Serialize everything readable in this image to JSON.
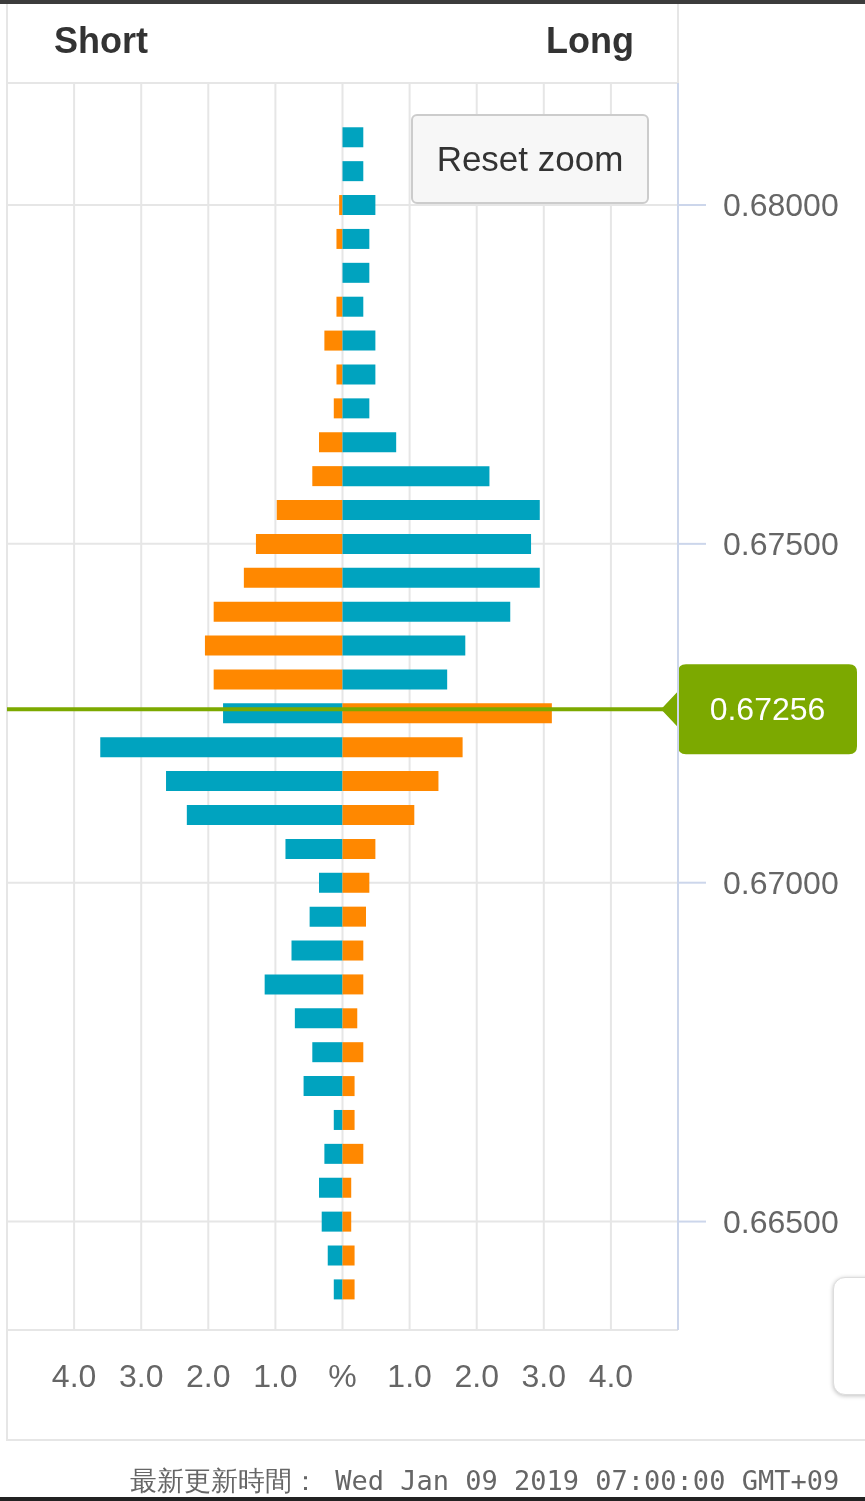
{
  "chart_data": {
    "type": "bar",
    "orientation": "horizontal",
    "stacked": true,
    "x": [
      0.681,
      0.6805,
      0.68,
      0.6795,
      0.679,
      0.6785,
      0.678,
      0.6775,
      0.677,
      0.6765,
      0.676,
      0.6755,
      0.675,
      0.6745,
      0.674,
      0.6735,
      0.673,
      0.6725,
      0.672,
      0.6715,
      0.671,
      0.6705,
      0.67,
      0.6695,
      0.669,
      0.6685,
      0.668,
      0.6675,
      0.667,
      0.6665,
      0.666,
      0.6655,
      0.665,
      0.6645,
      0.664
    ],
    "series": [
      {
        "colors": [
          "#ff8800",
          "#ff8800",
          "#ff8800",
          "#ff8800",
          "#ff8800",
          "#ff8800",
          "#ff8800",
          "#ff8800",
          "#ff8800",
          "#ff8800",
          "#ff8800",
          "#ff8800",
          "#ff8800",
          "#ff8800",
          "#ff8800",
          "#ff8800",
          "#ff8800",
          "#00a3bf",
          "#00a3bf",
          "#00a3bf",
          "#00a3bf",
          "#00a3bf",
          "#00a3bf",
          "#00a3bf",
          "#00a3bf",
          "#00a3bf",
          "#00a3bf",
          "#00a3bf",
          "#00a3bf",
          "#00a3bf",
          "#00a3bf",
          "#00a3bf",
          "#00a3bf",
          "#00a3bf",
          "#00a3bf"
        ],
        "values": [
          null,
          null,
          -0.05,
          -0.09,
          null,
          -0.09,
          -0.27,
          -0.09,
          -0.13,
          -0.35,
          -0.45,
          -0.98,
          -1.29,
          -1.47,
          -1.92,
          -2.05,
          -1.92,
          -1.78,
          -3.61,
          -2.63,
          -2.32,
          -0.85,
          -0.35,
          -0.49,
          -0.76,
          -1.16,
          -0.71,
          -0.45,
          -0.58,
          -0.13,
          -0.27,
          -0.35,
          -0.31,
          -0.22,
          -0.13
        ]
      },
      {
        "colors": [
          "#00a3bf",
          "#00a3bf",
          "#00a3bf",
          "#00a3bf",
          "#00a3bf",
          "#00a3bf",
          "#00a3bf",
          "#00a3bf",
          "#00a3bf",
          "#00a3bf",
          "#00a3bf",
          "#00a3bf",
          "#00a3bf",
          "#00a3bf",
          "#00a3bf",
          "#00a3bf",
          "#00a3bf",
          "#ff8800",
          "#ff8800",
          "#ff8800",
          "#ff8800",
          "#ff8800",
          "#ff8800",
          "#ff8800",
          "#ff8800",
          "#ff8800",
          "#ff8800",
          "#ff8800",
          "#ff8800",
          "#ff8800",
          "#ff8800",
          "#ff8800",
          "#ff8800",
          "#ff8800",
          "#ff8800"
        ],
        "values": [
          0.31,
          0.31,
          0.49,
          0.4,
          0.4,
          0.31,
          0.49,
          0.49,
          0.4,
          0.8,
          2.19,
          2.94,
          2.81,
          2.94,
          2.5,
          1.83,
          1.56,
          3.12,
          1.79,
          1.43,
          1.07,
          0.49,
          0.4,
          0.35,
          0.31,
          0.31,
          0.22,
          0.31,
          0.18,
          0.18,
          0.31,
          0.13,
          0.13,
          0.18,
          0.18
        ]
      }
    ],
    "xlim": [
      -5,
      5
    ],
    "xticks": [
      {
        "value": -5,
        "label": null
      },
      {
        "value": -4,
        "label": "4.0"
      },
      {
        "value": -3,
        "label": "3.0"
      },
      {
        "value": -2,
        "label": "2.0"
      },
      {
        "value": -1,
        "label": "1.0"
      },
      {
        "value": 0,
        "label": "%"
      },
      {
        "value": 1,
        "label": "1.0"
      },
      {
        "value": 2,
        "label": "2.0"
      },
      {
        "value": 3,
        "label": "3.0"
      },
      {
        "value": 4,
        "label": "4.0"
      },
      {
        "value": 5,
        "label": null
      }
    ],
    "ylim": [
      0.6634,
      0.6818
    ],
    "yticks": [
      {
        "value": 0.665,
        "label": "0.66500"
      },
      {
        "value": 0.67,
        "label": "0.67000"
      },
      {
        "value": 0.675,
        "label": "0.67500"
      },
      {
        "value": 0.68,
        "label": "0.68000"
      }
    ],
    "grid": true,
    "ref_lines": [
      {
        "axis": "y",
        "value": 0.67256,
        "label": "0.67256",
        "color": "#7ca900"
      }
    ],
    "annotations": [
      "Short",
      "Long",
      "Reset zoom",
      "最新更新時間： Wed Jan 09 2019 07:00:00 GMT+09"
    ]
  }
}
